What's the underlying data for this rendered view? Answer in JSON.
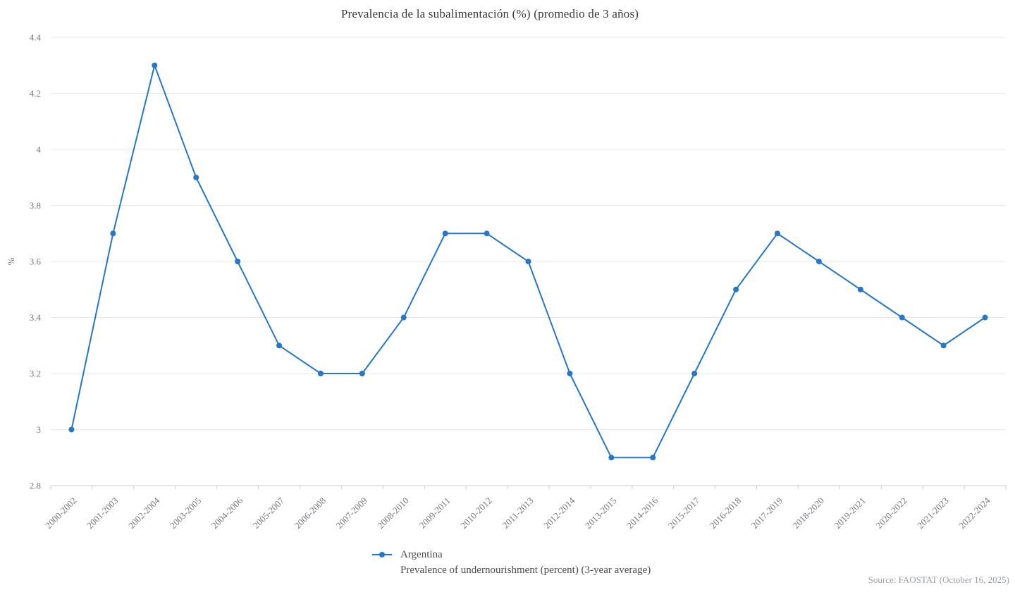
{
  "source_note": "Source: FAOSTAT (October 16, 2025)",
  "colors": {
    "series": "#2577c8",
    "grid": "#e9e9e9",
    "axis_line": "#cccccc",
    "axis_label": "#76797f",
    "title": "#383838",
    "legend_text": "#4d4d4d",
    "source": "#9aa0a6"
  },
  "chart_data": {
    "type": "line",
    "title": "Prevalencia de la subalimentación (%) (promedio de 3 años)",
    "xlabel": "",
    "ylabel": "%",
    "ylim": [
      2.8,
      4.4
    ],
    "ytick_step": 0.2,
    "grid": true,
    "legend_position": "bottom",
    "x_label_rotation": 45,
    "marker": "circle",
    "categories": [
      "2000-2002",
      "2001-2003",
      "2002-2004",
      "2003-2005",
      "2004-2006",
      "2005-2007",
      "2006-2008",
      "2007-2009",
      "2008-2010",
      "2009-2011",
      "2010-2012",
      "2011-2013",
      "2012-2014",
      "2013-2015",
      "2014-2016",
      "2015-2017",
      "2016-2018",
      "2017-2019",
      "2018-2020",
      "2019-2021",
      "2020-2022",
      "2021-2023",
      "2022-2024"
    ],
    "series": [
      {
        "name": "Argentina",
        "subtitle": "Prevalence of undernourishment (percent) (3-year average)",
        "values": [
          3.0,
          3.7,
          4.3,
          3.9,
          3.6,
          3.3,
          3.2,
          3.2,
          3.4,
          3.7,
          3.7,
          3.6,
          3.2,
          2.9,
          2.9,
          3.2,
          3.5,
          3.7,
          3.6,
          3.5,
          3.4,
          3.3,
          3.4
        ]
      }
    ]
  }
}
